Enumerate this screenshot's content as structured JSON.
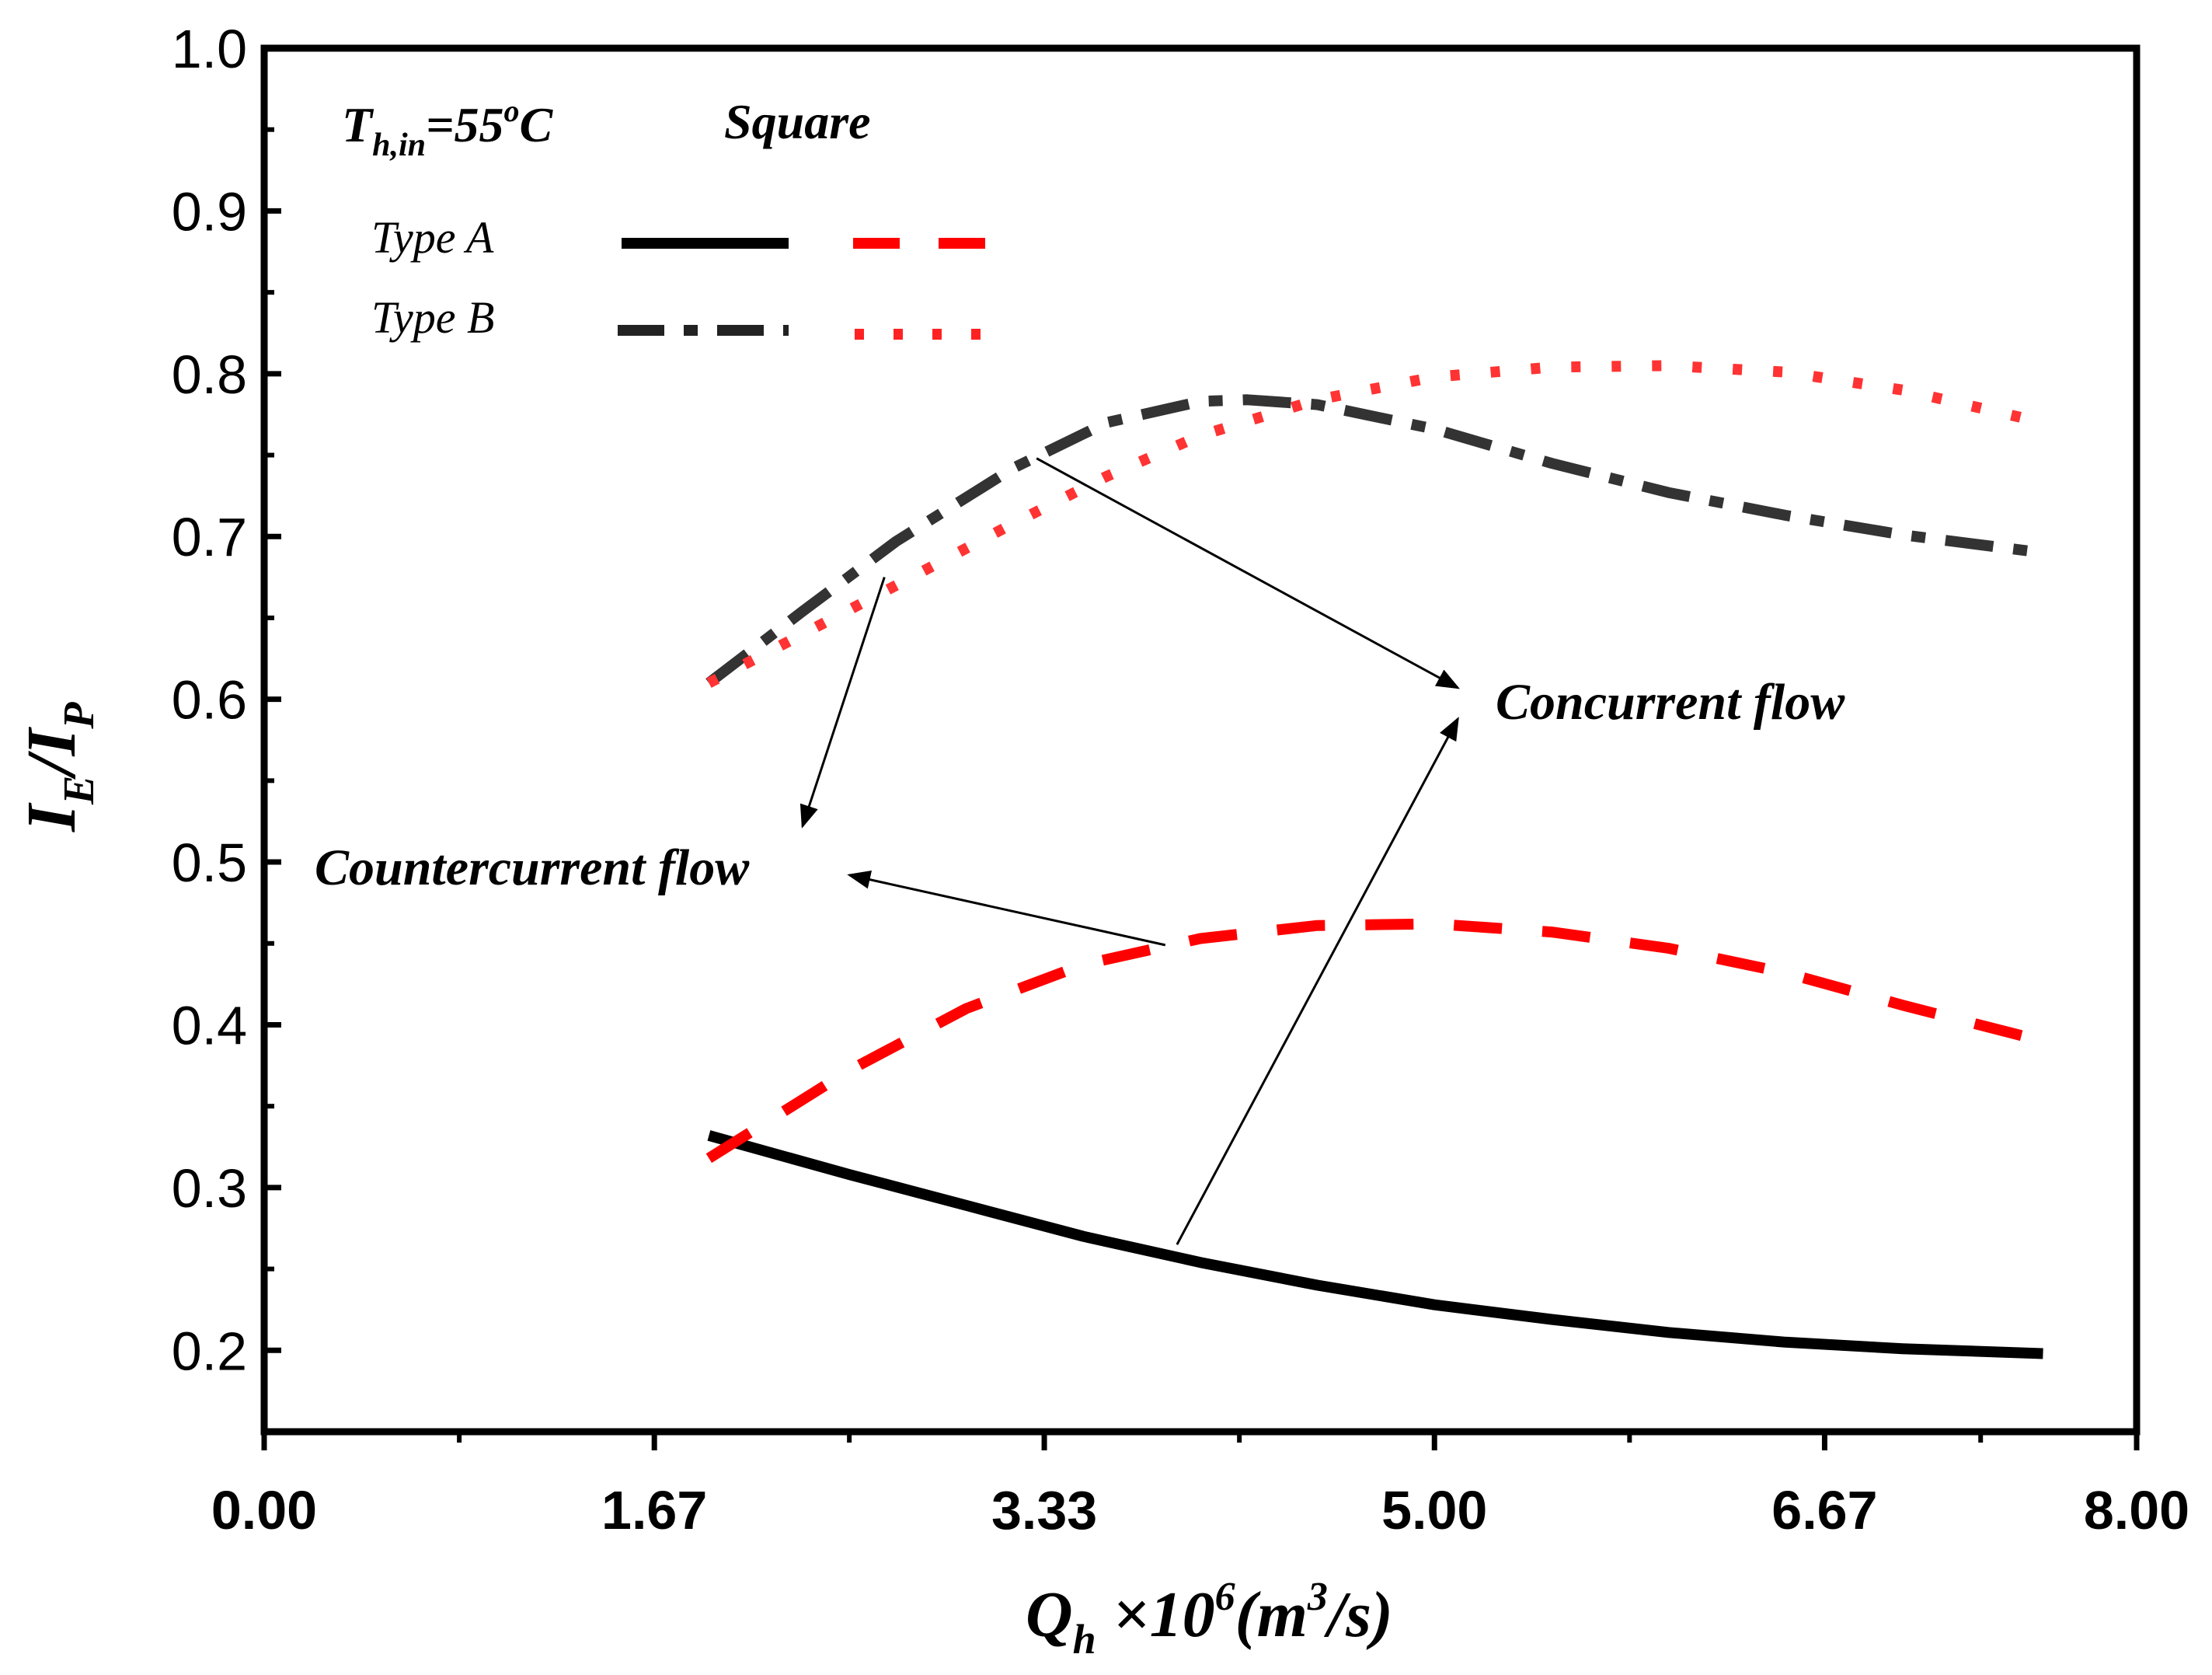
{
  "chart_data": {
    "type": "line",
    "xlim": [
      0,
      8
    ],
    "ylim": [
      0.15,
      1.0
    ],
    "x_ticks": [
      {
        "value": 0,
        "label": "0.00"
      },
      {
        "value": 1.667,
        "label": "1.67"
      },
      {
        "value": 3.333,
        "label": "3.33"
      },
      {
        "value": 5.0,
        "label": "5.00"
      },
      {
        "value": 6.667,
        "label": "6.67"
      },
      {
        "value": 8.0,
        "label": "8.00"
      }
    ],
    "y_ticks": [
      {
        "value": 0.2,
        "label": "0.2"
      },
      {
        "value": 0.3,
        "label": "0.3"
      },
      {
        "value": 0.4,
        "label": "0.4"
      },
      {
        "value": 0.5,
        "label": "0.5"
      },
      {
        "value": 0.6,
        "label": "0.6"
      },
      {
        "value": 0.7,
        "label": "0.7"
      },
      {
        "value": 0.8,
        "label": "0.8"
      },
      {
        "value": 0.9,
        "label": "0.9"
      },
      {
        "value": 1.0,
        "label": "1.0"
      }
    ],
    "xlabel": {
      "main": "Q",
      "sub": "h",
      "mid": " ×10",
      "sup1": "6",
      "tail1": "(m",
      "sup2": "3",
      "tail2": "/s)"
    },
    "ylabel": {
      "i1": "I",
      "s1": "E",
      "slash": "/",
      "i2": "I",
      "s2": "P"
    },
    "annotations": {
      "temp": {
        "main": "T",
        "sub": "h,in",
        "eq": "=55",
        "sup": "o",
        "unit": "C"
      },
      "shape": "Square",
      "concurrent": "Concurrent flow",
      "countercurrent": "Countercurrent flow"
    },
    "legend": {
      "placement": "top-left",
      "rows": [
        {
          "label": "Type A",
          "concurrent_style": "solid",
          "countercurrent_style": "dashed"
        },
        {
          "label": "Type B",
          "concurrent_style": "dash-dot",
          "countercurrent_style": "dotted"
        }
      ]
    },
    "series": [
      {
        "name": "Type A concurrent",
        "flow": "concurrent",
        "color": "#000000",
        "dash": "solid",
        "x": [
          1.9,
          2.5,
          3.0,
          3.5,
          4.0,
          4.5,
          5.0,
          5.5,
          6.0,
          6.5,
          7.0,
          7.6
        ],
        "y": [
          0.332,
          0.308,
          0.289,
          0.27,
          0.254,
          0.24,
          0.228,
          0.219,
          0.211,
          0.205,
          0.201,
          0.198
        ]
      },
      {
        "name": "Type A countercurrent",
        "flow": "countercurrent",
        "color": "#ff0000",
        "dash": "dashed",
        "x": [
          1.9,
          2.5,
          3.0,
          3.5,
          4.0,
          4.5,
          5.0,
          5.5,
          6.0,
          6.5,
          7.0,
          7.6
        ],
        "y": [
          0.318,
          0.372,
          0.41,
          0.437,
          0.453,
          0.461,
          0.462,
          0.457,
          0.447,
          0.432,
          0.412,
          0.39
        ]
      },
      {
        "name": "Type B concurrent",
        "flow": "concurrent",
        "color": "#333333",
        "dash": "dash-dot",
        "x": [
          1.9,
          2.3,
          2.7,
          3.2,
          3.6,
          4.0,
          4.2,
          4.5,
          5.0,
          5.5,
          6.0,
          6.5,
          7.0,
          7.6
        ],
        "y": [
          0.61,
          0.654,
          0.697,
          0.742,
          0.77,
          0.783,
          0.784,
          0.781,
          0.766,
          0.745,
          0.727,
          0.713,
          0.701,
          0.69
        ]
      },
      {
        "name": "Type B countercurrent",
        "flow": "countercurrent",
        "color": "#ff3333",
        "dash": "dotted",
        "x": [
          1.9,
          2.3,
          2.7,
          3.2,
          3.6,
          4.0,
          4.5,
          5.0,
          5.5,
          6.0,
          6.5,
          7.0,
          7.6
        ],
        "y": [
          0.61,
          0.64,
          0.67,
          0.708,
          0.737,
          0.762,
          0.784,
          0.798,
          0.804,
          0.805,
          0.801,
          0.79,
          0.77
        ]
      }
    ],
    "arrows": [
      {
        "name": "concurrent-arrow-typeB",
        "from": [
          3.3,
          0.748
        ],
        "to": [
          5.1,
          0.607
        ]
      },
      {
        "name": "concurrent-arrow-typeA",
        "from": [
          3.9,
          0.265
        ],
        "to": [
          5.1,
          0.588
        ]
      },
      {
        "name": "countercurrent-arrow-typeB",
        "from": [
          2.65,
          0.675
        ],
        "to": [
          2.3,
          0.522
        ]
      },
      {
        "name": "countercurrent-arrow-typeA",
        "from": [
          3.85,
          0.449
        ],
        "to": [
          2.5,
          0.492
        ]
      }
    ]
  }
}
